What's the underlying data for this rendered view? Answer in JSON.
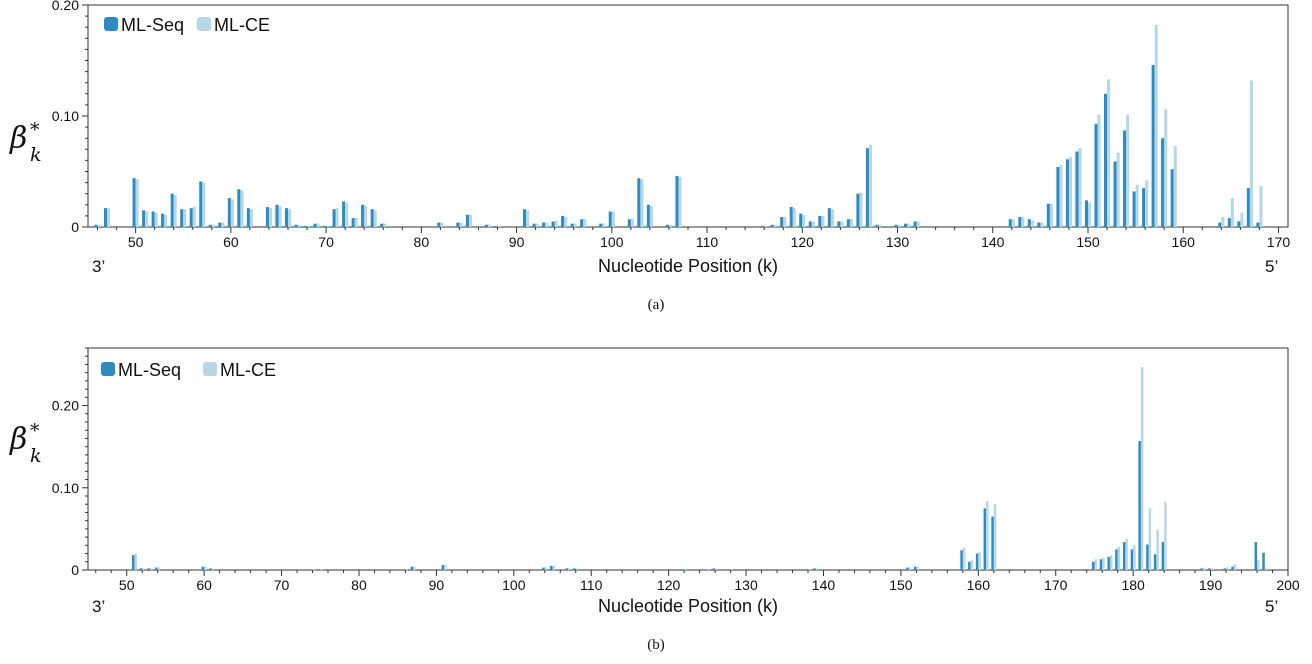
{
  "colors": {
    "ml_seq": "#2e8bc0",
    "ml_ce": "#b4d8e8",
    "axis": "#333333"
  },
  "chart_data": [
    {
      "type": "bar",
      "panel_label": "(a)",
      "xlabel": "Nucleotide Position (k)",
      "ylabel": "β",
      "ylabel_sub": "k",
      "ylabel_sup": "*",
      "left_end_label": "3’",
      "right_end_label": "5’",
      "xlim": [
        45,
        171
      ],
      "ylim": [
        0,
        0.2
      ],
      "xticks": [
        50,
        60,
        70,
        80,
        90,
        100,
        110,
        120,
        130,
        140,
        150,
        160,
        170
      ],
      "yticks": [
        0,
        0.1,
        0.2
      ],
      "ytick_labels": [
        "0",
        "0.10",
        "0.20"
      ],
      "legend_position": "top-left",
      "series": [
        {
          "name": "ML-Seq",
          "x": [
            46,
            47,
            50,
            51,
            52,
            53,
            54,
            55,
            56,
            57,
            58,
            59,
            60,
            61,
            62,
            64,
            65,
            66,
            67,
            68,
            69,
            70,
            71,
            72,
            73,
            74,
            75,
            76,
            82,
            84,
            85,
            87,
            88,
            91,
            92,
            93,
            94,
            95,
            96,
            97,
            99,
            100,
            102,
            103,
            104,
            106,
            107,
            116,
            117,
            118,
            119,
            120,
            121,
            122,
            123,
            124,
            125,
            126,
            127,
            128,
            130,
            131,
            132,
            142,
            143,
            144,
            145,
            146,
            147,
            148,
            149,
            150,
            151,
            152,
            153,
            154,
            155,
            156,
            157,
            158,
            159,
            164,
            165,
            166,
            167,
            168
          ],
          "values": [
            0.002,
            0.017,
            0.044,
            0.015,
            0.014,
            0.012,
            0.03,
            0.016,
            0.017,
            0.041,
            0.002,
            0.004,
            0.026,
            0.034,
            0.017,
            0.018,
            0.02,
            0.017,
            0.002,
            0.001,
            0.003,
            0.001,
            0.016,
            0.023,
            0.008,
            0.02,
            0.016,
            0.003,
            0.004,
            0.004,
            0.011,
            0.002,
            0.001,
            0.016,
            0.003,
            0.004,
            0.005,
            0.01,
            0.003,
            0.007,
            0.003,
            0.014,
            0.007,
            0.044,
            0.02,
            0.002,
            0.046,
            0.001,
            0.002,
            0.009,
            0.018,
            0.012,
            0.005,
            0.01,
            0.017,
            0.005,
            0.007,
            0.03,
            0.071,
            0.002,
            0.002,
            0.003,
            0.005,
            0.007,
            0.009,
            0.007,
            0.004,
            0.021,
            0.054,
            0.061,
            0.068,
            0.024,
            0.093,
            0.12,
            0.059,
            0.087,
            0.032,
            0.035,
            0.146,
            0.08,
            0.052,
            0.004,
            0.008,
            0.005,
            0.035,
            0.004
          ]
        },
        {
          "name": "ML-CE",
          "x": [
            46,
            47,
            50,
            51,
            52,
            53,
            54,
            55,
            56,
            57,
            58,
            59,
            60,
            61,
            62,
            64,
            65,
            66,
            67,
            68,
            69,
            70,
            71,
            72,
            73,
            74,
            75,
            76,
            82,
            84,
            85,
            87,
            88,
            91,
            92,
            93,
            94,
            95,
            96,
            97,
            99,
            100,
            102,
            103,
            104,
            106,
            107,
            116,
            117,
            118,
            119,
            120,
            121,
            122,
            123,
            124,
            125,
            126,
            127,
            128,
            130,
            131,
            132,
            142,
            143,
            144,
            145,
            146,
            147,
            148,
            149,
            150,
            151,
            152,
            153,
            154,
            155,
            156,
            157,
            158,
            159,
            164,
            165,
            166,
            167,
            168
          ],
          "values": [
            0.002,
            0.017,
            0.043,
            0.014,
            0.013,
            0.011,
            0.029,
            0.016,
            0.018,
            0.04,
            0.002,
            0.004,
            0.025,
            0.033,
            0.016,
            0.017,
            0.019,
            0.016,
            0.002,
            0.001,
            0.003,
            0.001,
            0.017,
            0.022,
            0.008,
            0.019,
            0.015,
            0.003,
            0.004,
            0.004,
            0.011,
            0.002,
            0.001,
            0.015,
            0.003,
            0.004,
            0.006,
            0.009,
            0.003,
            0.007,
            0.003,
            0.014,
            0.007,
            0.043,
            0.019,
            0.002,
            0.045,
            0.001,
            0.002,
            0.009,
            0.017,
            0.011,
            0.005,
            0.01,
            0.016,
            0.005,
            0.007,
            0.031,
            0.074,
            0.002,
            0.002,
            0.003,
            0.005,
            0.007,
            0.009,
            0.006,
            0.004,
            0.021,
            0.056,
            0.063,
            0.071,
            0.022,
            0.101,
            0.133,
            0.067,
            0.101,
            0.038,
            0.042,
            0.182,
            0.106,
            0.073,
            0.009,
            0.026,
            0.013,
            0.132,
            0.037
          ]
        }
      ]
    },
    {
      "type": "bar",
      "panel_label": "(b)",
      "xlabel": "Nucleotide Position (k)",
      "ylabel": "β",
      "ylabel_sub": "k",
      "ylabel_sup": "*",
      "left_end_label": "3’",
      "right_end_label": "5’",
      "xlim": [
        45,
        200
      ],
      "ylim": [
        0,
        0.27
      ],
      "xticks": [
        50,
        60,
        70,
        80,
        90,
        100,
        110,
        120,
        130,
        140,
        150,
        160,
        170,
        180,
        190,
        200
      ],
      "yticks": [
        0,
        0.1,
        0.2
      ],
      "ytick_labels": [
        "0",
        "0.10",
        "0.20"
      ],
      "legend_position": "top-left",
      "series": [
        {
          "name": "ML-Seq",
          "x": [
            51,
            52,
            53,
            54,
            60,
            61,
            74,
            75,
            86,
            87,
            91,
            104,
            105,
            107,
            108,
            122,
            125,
            126,
            128,
            138,
            139,
            151,
            152,
            158,
            159,
            160,
            161,
            162,
            175,
            176,
            177,
            178,
            179,
            180,
            181,
            182,
            183,
            184,
            189,
            190,
            192,
            193,
            196,
            197
          ],
          "values": [
            0.018,
            0.002,
            0.002,
            0.003,
            0.004,
            0.002,
            0.001,
            0.001,
            0.001,
            0.004,
            0.006,
            0.003,
            0.005,
            0.002,
            0.002,
            0.001,
            0.001,
            0.002,
            0.001,
            0.001,
            0.002,
            0.003,
            0.004,
            0.024,
            0.01,
            0.02,
            0.075,
            0.065,
            0.01,
            0.013,
            0.016,
            0.025,
            0.034,
            0.025,
            0.157,
            0.031,
            0.019,
            0.034,
            0.002,
            0.002,
            0.002,
            0.004,
            0.034,
            0.021
          ]
        },
        {
          "name": "ML-CE",
          "x": [
            51,
            52,
            53,
            54,
            60,
            61,
            74,
            75,
            86,
            87,
            91,
            104,
            105,
            107,
            108,
            122,
            125,
            126,
            128,
            138,
            139,
            151,
            152,
            158,
            159,
            160,
            161,
            162,
            175,
            176,
            177,
            178,
            179,
            180,
            181,
            182,
            183,
            184,
            189,
            190,
            192,
            193,
            196,
            197
          ],
          "values": [
            0.02,
            0.002,
            0.002,
            0.003,
            0.004,
            0.002,
            0.001,
            0.001,
            0.001,
            0.004,
            0.006,
            0.003,
            0.005,
            0.002,
            0.002,
            0.001,
            0.001,
            0.002,
            0.001,
            0.001,
            0.002,
            0.003,
            0.004,
            0.027,
            0.012,
            0.022,
            0.084,
            0.08,
            0.013,
            0.015,
            0.018,
            0.028,
            0.038,
            0.03,
            0.247,
            0.075,
            0.049,
            0.083,
            0.002,
            0.002,
            0.003,
            0.007,
            0.012,
            0.003
          ]
        }
      ]
    }
  ]
}
